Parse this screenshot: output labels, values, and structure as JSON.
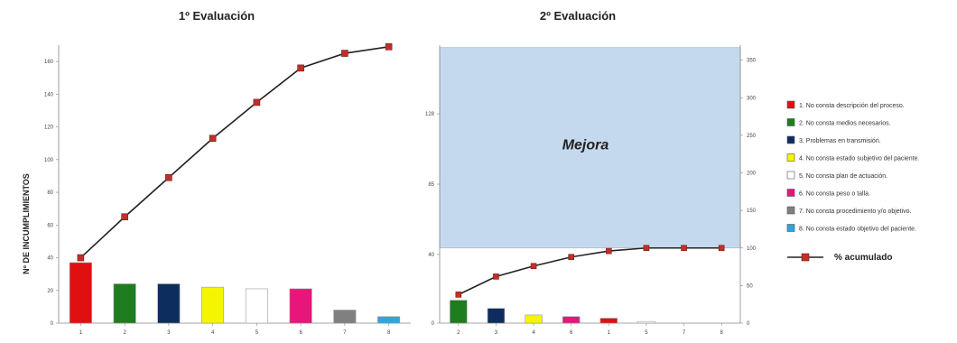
{
  "ylabel": "Nº DE INCUMPLIMIENTOS",
  "chart_data": [
    {
      "type": "bar",
      "title": "1º Evaluación",
      "categories": [
        "1",
        "2",
        "3",
        "4",
        "5",
        "6",
        "7",
        "8"
      ],
      "values": [
        37,
        24,
        24,
        22,
        21,
        21,
        8,
        4
      ],
      "bar_colors": [
        "#e01010",
        "#1e7d1e",
        "#0d2d5e",
        "#f5f500",
        "#ffffff",
        "#e8157a",
        "#808080",
        "#2aa7e0"
      ],
      "ylim": [
        0,
        170
      ],
      "yticks": [
        "0",
        "20",
        "40",
        "60",
        "80",
        "100",
        "120",
        "140",
        "160"
      ],
      "ytick_values": [
        0,
        20,
        40,
        60,
        80,
        100,
        120,
        140,
        160
      ],
      "line": {
        "name": "% acumulado",
        "values": [
          40,
          65,
          89,
          113,
          135,
          156,
          165,
          169
        ]
      }
    },
    {
      "type": "bar",
      "title": "2º Evaluación",
      "categories": [
        "2",
        "3",
        "4",
        "6",
        "1",
        "5",
        "7",
        "8"
      ],
      "values": [
        14,
        9,
        5,
        4,
        3,
        1,
        0,
        0
      ],
      "bar_colors": [
        "#1e7d1e",
        "#0d2d5e",
        "#f5f500",
        "#e8157a",
        "#e01010",
        "#ffffff",
        "#808080",
        "#2aa7e0"
      ],
      "ylim": [
        0,
        170
      ],
      "yticks": [
        "0",
        "40",
        "85",
        "128"
      ],
      "ytick_values": [
        0,
        42,
        85,
        128
      ],
      "y2lim": [
        0,
        370
      ],
      "y2ticks": [
        "0",
        "50",
        "100",
        "150",
        "200",
        "250",
        "300",
        "350"
      ],
      "y2tick_values": [
        0,
        50,
        100,
        150,
        200,
        250,
        300,
        350
      ],
      "line": {
        "name": "% acumulado",
        "values": [
          38,
          62,
          76,
          88,
          96,
          100,
          100,
          100
        ]
      },
      "annotation": "Mejora",
      "legend": {
        "entries": [
          {
            "label": "1. No consta descripción del proceso.",
            "color": "#e01010"
          },
          {
            "label": "2. No consta medios necesarios.",
            "color": "#1e7d1e"
          },
          {
            "label": "3. Problemas en transmisión.",
            "color": "#0d2d5e"
          },
          {
            "label": "4. No consta estado subjetivo del paciente.",
            "color": "#f5f500"
          },
          {
            "label": "5. No consta plan de actuación.",
            "color": "#ffffff"
          },
          {
            "label": "6. No consta peso o talla.",
            "color": "#e8157a"
          },
          {
            "label": "7. No consta procedimiento y/o objetivo.",
            "color": "#808080"
          },
          {
            "label": "8. No consta estado objetivo del paciente.",
            "color": "#2aa7e0"
          }
        ],
        "line_label": "% acumulado"
      }
    }
  ]
}
